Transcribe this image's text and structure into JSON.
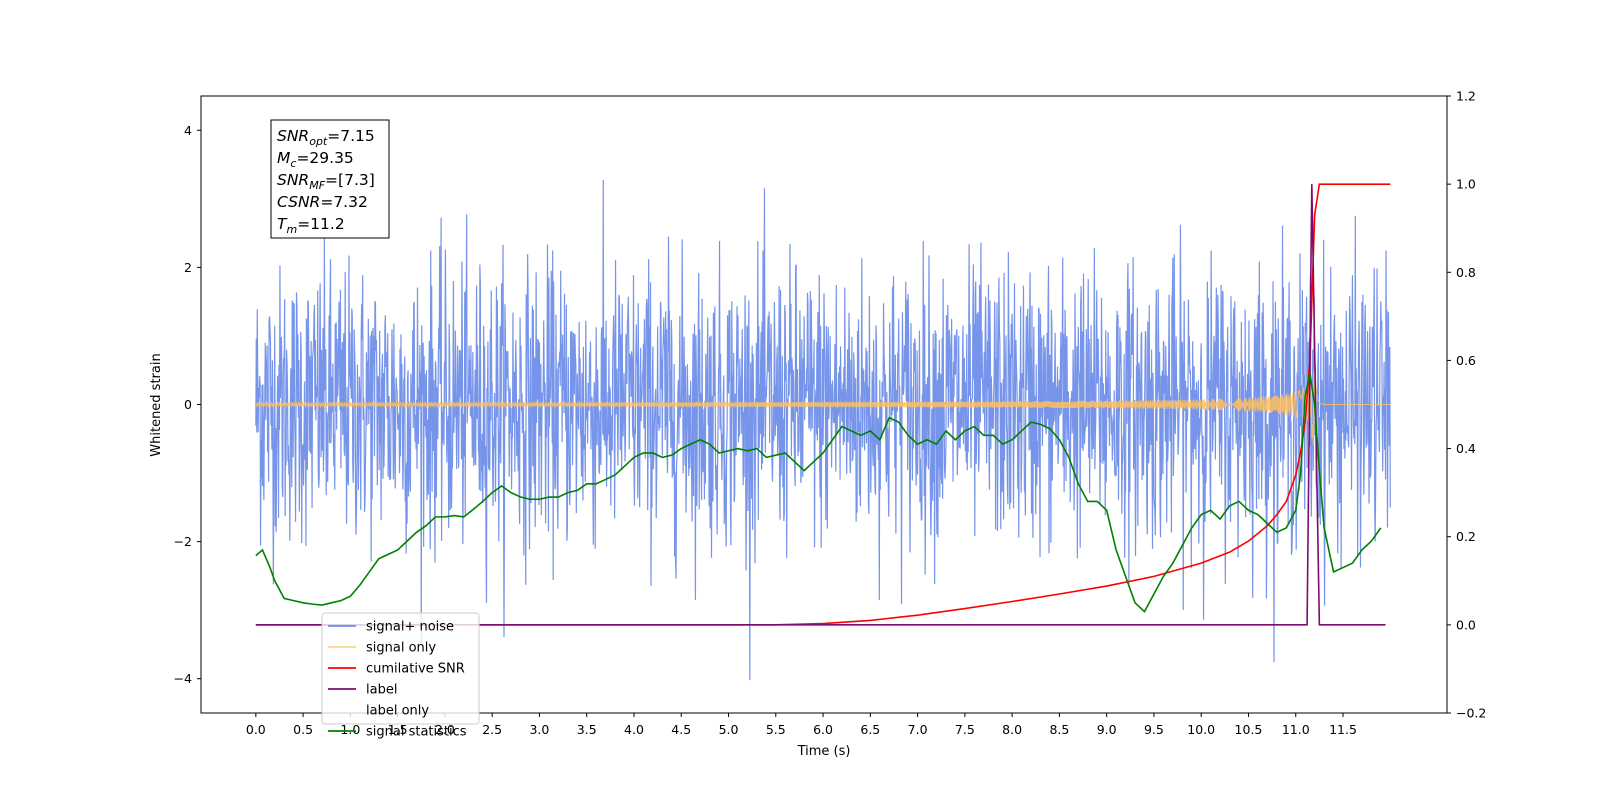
{
  "chart_data": {
    "type": "line",
    "xlabel": "Time (s)",
    "ylabel_left": "Whitened strain",
    "ylabel_right": "",
    "xlim": [
      -0.58,
      12.6
    ],
    "ylim_left": [
      -4.5,
      4.5
    ],
    "ylim_right": [
      -0.2,
      1.2
    ],
    "x_ticks": [
      "0.0",
      "0.5",
      "1.0",
      "1.5",
      "2.0",
      "2.5",
      "3.0",
      "3.5",
      "4.0",
      "4.5",
      "5.0",
      "5.5",
      "6.0",
      "6.5",
      "7.0",
      "7.5",
      "8.0",
      "8.5",
      "9.0",
      "9.5",
      "10.0",
      "10.5",
      "11.0",
      "11.5"
    ],
    "y_ticks_left": [
      "4",
      "2",
      "0",
      "−2",
      "−4"
    ],
    "y_ticks_right": [
      "1.2",
      "1.0",
      "0.8",
      "0.6",
      "0.4",
      "0.2",
      "0.0",
      "−0.2"
    ],
    "grid": false,
    "legend_position": "lower-left",
    "annotation": {
      "lines": [
        {
          "sym": "SNR",
          "sub": "opt",
          "rest": "=7.15"
        },
        {
          "sym": "M",
          "sub": "c",
          "rest": "=29.35"
        },
        {
          "sym": "SNR",
          "sub": "MF",
          "rest": "=[7.3]"
        },
        {
          "sym": "CSNR",
          "sub": "",
          "rest": "=7.32"
        },
        {
          "sym": "T",
          "sub": "m",
          "rest": "=11.2"
        }
      ]
    },
    "series": [
      {
        "name": "signal+ noise",
        "color": "#6f8ee8",
        "axis": "left",
        "kind": "noise",
        "t_range": [
          0,
          12.0
        ],
        "approx_std": 1.0,
        "approx_peak_abs": 4.1
      },
      {
        "name": "signal only",
        "color": "#ffbf5e",
        "axis": "left",
        "kind": "chirp",
        "t_range": [
          0,
          12.0
        ],
        "merger_time": 11.2,
        "peak_amplitude": 0.6
      },
      {
        "name": "cumilative SNR",
        "color": "#ff0000",
        "axis": "right",
        "x": [
          0.0,
          5.0,
          5.5,
          6.0,
          6.5,
          7.0,
          7.5,
          8.0,
          8.5,
          9.0,
          9.5,
          10.0,
          10.3,
          10.5,
          10.7,
          10.8,
          10.9,
          11.0,
          11.05,
          11.1,
          11.15,
          11.2,
          11.25,
          11.5,
          11.75,
          12.0
        ],
        "y": [
          0.0,
          0.0,
          0.0,
          0.003,
          0.01,
          0.022,
          0.037,
          0.053,
          0.07,
          0.088,
          0.11,
          0.14,
          0.165,
          0.19,
          0.225,
          0.25,
          0.28,
          0.34,
          0.39,
          0.46,
          0.6,
          0.93,
          1.0,
          1.0,
          1.0,
          1.0
        ]
      },
      {
        "name": "label",
        "color": "#7b0c6e",
        "axis": "right",
        "x": [
          0.0,
          11.12,
          11.17,
          11.25,
          11.3,
          11.95
        ],
        "y": [
          0.0,
          0.0,
          1.0,
          0.0,
          0.0,
          0.0
        ]
      },
      {
        "name": "label only",
        "color": "#aaaaaa",
        "axis": "right",
        "hidden": true,
        "x": [],
        "y": []
      },
      {
        "name": "signal statistics",
        "color": "#008000",
        "axis": "right",
        "x": [
          0.0,
          0.07,
          0.15,
          0.2,
          0.3,
          0.4,
          0.5,
          0.6,
          0.7,
          0.8,
          0.9,
          1.0,
          1.1,
          1.2,
          1.3,
          1.4,
          1.5,
          1.6,
          1.7,
          1.8,
          1.9,
          2.0,
          2.1,
          2.2,
          2.3,
          2.4,
          2.5,
          2.6,
          2.7,
          2.8,
          2.9,
          3.0,
          3.1,
          3.2,
          3.3,
          3.4,
          3.5,
          3.6,
          3.7,
          3.8,
          3.9,
          4.0,
          4.1,
          4.2,
          4.3,
          4.4,
          4.5,
          4.6,
          4.7,
          4.8,
          4.9,
          5.0,
          5.1,
          5.2,
          5.3,
          5.4,
          5.5,
          5.6,
          5.7,
          5.8,
          5.9,
          6.0,
          6.1,
          6.2,
          6.3,
          6.4,
          6.5,
          6.6,
          6.7,
          6.8,
          6.9,
          7.0,
          7.1,
          7.2,
          7.3,
          7.4,
          7.5,
          7.6,
          7.7,
          7.8,
          7.9,
          8.0,
          8.1,
          8.2,
          8.3,
          8.4,
          8.5,
          8.6,
          8.7,
          8.8,
          8.9,
          9.0,
          9.1,
          9.2,
          9.3,
          9.4,
          9.5,
          9.6,
          9.7,
          9.8,
          9.9,
          10.0,
          10.1,
          10.2,
          10.3,
          10.4,
          10.5,
          10.6,
          10.7,
          10.8,
          10.9,
          11.0,
          11.05,
          11.1,
          11.15,
          11.2,
          11.25,
          11.3,
          11.4,
          11.5,
          11.6,
          11.7,
          11.8,
          11.9
        ],
        "y": [
          0.157,
          0.17,
          0.13,
          0.1,
          0.06,
          0.055,
          0.05,
          0.047,
          0.045,
          0.05,
          0.055,
          0.065,
          0.09,
          0.12,
          0.15,
          0.16,
          0.17,
          0.19,
          0.21,
          0.225,
          0.245,
          0.245,
          0.248,
          0.245,
          0.262,
          0.28,
          0.3,
          0.315,
          0.3,
          0.29,
          0.285,
          0.285,
          0.29,
          0.29,
          0.3,
          0.305,
          0.32,
          0.32,
          0.33,
          0.34,
          0.36,
          0.38,
          0.39,
          0.39,
          0.38,
          0.385,
          0.4,
          0.41,
          0.42,
          0.41,
          0.39,
          0.395,
          0.4,
          0.395,
          0.4,
          0.38,
          0.385,
          0.39,
          0.37,
          0.35,
          0.37,
          0.39,
          0.42,
          0.45,
          0.44,
          0.43,
          0.44,
          0.42,
          0.47,
          0.46,
          0.43,
          0.41,
          0.42,
          0.41,
          0.44,
          0.42,
          0.44,
          0.45,
          0.43,
          0.43,
          0.41,
          0.42,
          0.44,
          0.46,
          0.455,
          0.445,
          0.42,
          0.38,
          0.32,
          0.28,
          0.28,
          0.26,
          0.17,
          0.11,
          0.05,
          0.03,
          0.07,
          0.11,
          0.14,
          0.18,
          0.22,
          0.25,
          0.26,
          0.24,
          0.27,
          0.28,
          0.26,
          0.25,
          0.23,
          0.21,
          0.22,
          0.26,
          0.34,
          0.52,
          0.57,
          0.5,
          0.35,
          0.22,
          0.12,
          0.13,
          0.14,
          0.17,
          0.19,
          0.22
        ]
      }
    ]
  }
}
